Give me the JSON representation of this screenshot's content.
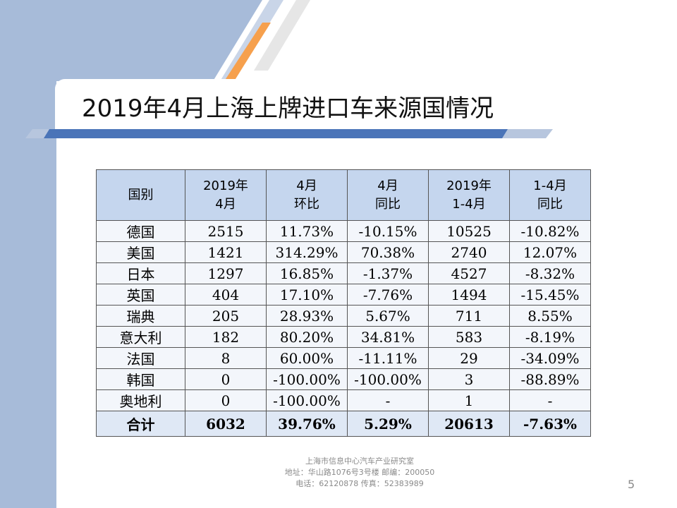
{
  "slide": {
    "title": "2019年4月上海上牌进口车来源国情况",
    "page_number": "5"
  },
  "table": {
    "headers": [
      [
        "国别"
      ],
      [
        "2019年",
        "4月"
      ],
      [
        "4月",
        "环比"
      ],
      [
        "4月",
        "同比"
      ],
      [
        "2019年",
        "1-4月"
      ],
      [
        "1-4月",
        "同比"
      ]
    ],
    "rows": [
      [
        "德国",
        "2515",
        "11.73%",
        "-10.15%",
        "10525",
        "-10.82%"
      ],
      [
        "美国",
        "1421",
        "314.29%",
        "70.38%",
        "2740",
        "12.07%"
      ],
      [
        "日本",
        "1297",
        "16.85%",
        "-1.37%",
        "4527",
        "-8.32%"
      ],
      [
        "英国",
        "404",
        "17.10%",
        "-7.76%",
        "1494",
        "-15.45%"
      ],
      [
        "瑞典",
        "205",
        "28.93%",
        "5.67%",
        "711",
        "8.55%"
      ],
      [
        "意大利",
        "182",
        "80.20%",
        "34.81%",
        "583",
        "-8.19%"
      ],
      [
        "法国",
        "8",
        "60.00%",
        "-11.11%",
        "29",
        "-34.09%"
      ],
      [
        "韩国",
        "0",
        "-100.00%",
        "-100.00%",
        "3",
        "-88.89%"
      ],
      [
        "奥地利",
        "0",
        "-100.00%",
        "-",
        "1",
        "-"
      ]
    ],
    "total": [
      "合计",
      "6032",
      "39.76%",
      "5.29%",
      "20613",
      "-7.63%"
    ]
  },
  "footer": {
    "line1": "上海市信息中心汽车产业研究室",
    "line2": "地址：华山路1076号3号楼   邮编：200050",
    "line3": "电话：62120878  传真：52383989"
  },
  "colors": {
    "accent_orange": "#f6a04d",
    "accent_blue": "#4a74b8",
    "side_blue": "#a7bbd9",
    "header_fill": "#c5d6ee"
  }
}
